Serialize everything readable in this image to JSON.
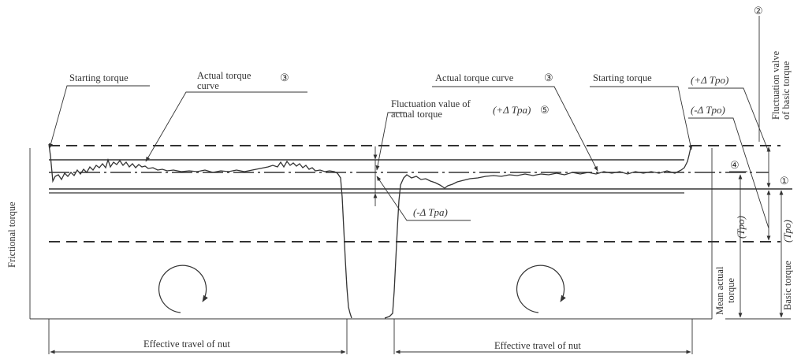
{
  "labels": {
    "starting_torque_left": "Starting torque",
    "actual_torque_curve_left": [
      "Actual torque",
      "curve"
    ],
    "circle3_left": "③",
    "actual_torque_curve_right": "Actual torque curve",
    "circle3_right": "③",
    "starting_torque_right": "Starting torque",
    "fluctuation_actual": [
      "Fluctuation value of",
      "actual torque"
    ],
    "plus_delta_tpa": "(+Δ Tpa)",
    "circle5": "⑤",
    "minus_delta_tpa": "(-Δ Tpa)",
    "plus_delta_tpo": "(+Δ Tpo)",
    "minus_delta_tpo": "(-Δ Tpo)",
    "circle2": "②",
    "fluctuation_basic": [
      "Fluctuation valve",
      "of basic torque"
    ],
    "circle4": "④",
    "circle1": "①",
    "tpo_paren_a": "(Tpo)",
    "tpo_paren_b": "(Tpo)",
    "mean_actual_torque": [
      "Mean actual",
      "torque"
    ],
    "basic_torque": "Basic torque",
    "frictional_torque": "Frictional torque",
    "effective_travel_left": "Effective travel of nut",
    "effective_travel_right": "Effective travel of nut"
  },
  "icons": {
    "rotation_left": "clockwise-rotation-arrow-icon",
    "rotation_right": "clockwise-rotation-arrow-icon"
  }
}
